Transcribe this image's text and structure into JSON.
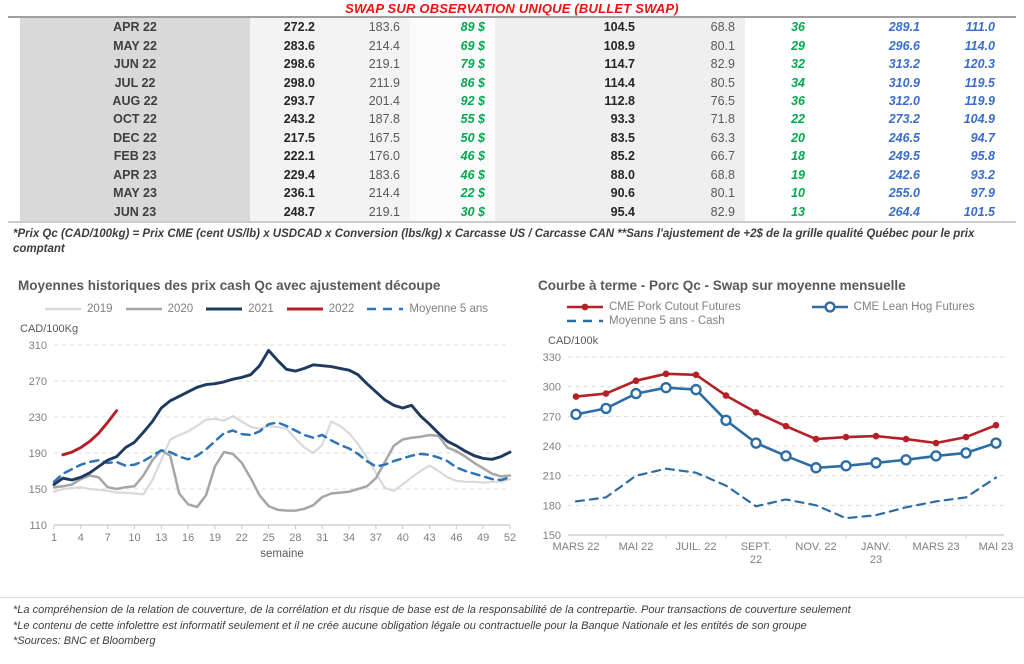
{
  "title": "SWAP SUR OBSERVATION UNIQUE (BULLET SWAP)",
  "colors": {
    "title_red": "#ed1111",
    "green": "#00a94f",
    "blue": "#3a6dcc"
  },
  "table": {
    "rows": [
      [
        "APR 22",
        "272.2",
        "183.6",
        "89 $",
        "104.5",
        "68.8",
        "36",
        "289.1",
        "111.0"
      ],
      [
        "MAY 22",
        "283.6",
        "214.4",
        "69 $",
        "108.9",
        "80.1",
        "29",
        "296.6",
        "114.0"
      ],
      [
        "JUN 22",
        "298.6",
        "219.1",
        "79 $",
        "114.7",
        "82.9",
        "32",
        "313.2",
        "120.3"
      ],
      [
        "JUL 22",
        "298.0",
        "211.9",
        "86 $",
        "114.4",
        "80.5",
        "34",
        "310.9",
        "119.5"
      ],
      [
        "AUG 22",
        "293.7",
        "201.4",
        "92 $",
        "112.8",
        "76.5",
        "36",
        "312.0",
        "119.9"
      ],
      [
        "OCT 22",
        "243.2",
        "187.8",
        "55 $",
        "93.3",
        "71.8",
        "22",
        "273.2",
        "104.9"
      ],
      [
        "DEC 22",
        "217.5",
        "167.5",
        "50 $",
        "83.5",
        "63.3",
        "20",
        "246.5",
        "94.7"
      ],
      [
        "FEB 23",
        "222.1",
        "176.0",
        "46 $",
        "85.2",
        "66.7",
        "18",
        "249.5",
        "95.8"
      ],
      [
        "APR 23",
        "229.4",
        "183.6",
        "46 $",
        "88.0",
        "68.8",
        "19",
        "242.6",
        "93.2"
      ],
      [
        "MAY 23",
        "236.1",
        "214.4",
        "22 $",
        "90.6",
        "80.1",
        "10",
        "255.0",
        "97.9"
      ],
      [
        "JUN 23",
        "248.7",
        "219.1",
        "30 $",
        "95.4",
        "82.9",
        "13",
        "264.4",
        "101.5"
      ]
    ]
  },
  "table_footnote": "*Prix Qc (CAD/100kg) = Prix CME (cent US/lb) x USDCAD x Conversion (lbs/kg) x Carcasse US / Carcasse CAN **Sans l'ajustement de +2$ de la grille qualité Québec pour le prix comptant",
  "chart_data": [
    {
      "type": "line",
      "title": "Moyennes historiques des prix cash Qc avec ajustement découpe",
      "ylabel": "CAD/100Kg",
      "xlabel": "semaine",
      "ylim": [
        110,
        310
      ],
      "yticks": [
        110,
        150,
        190,
        230,
        270,
        310
      ],
      "x_range": [
        1,
        52
      ],
      "xticks": [
        1,
        4,
        7,
        10,
        13,
        16,
        19,
        22,
        25,
        28,
        31,
        34,
        37,
        40,
        43,
        46,
        49,
        52
      ],
      "grid": true,
      "legend_position": "top",
      "series": [
        {
          "name": "2019",
          "color": "#d9d9d9",
          "style": "solid",
          "width": 2.2,
          "values": [
            147,
            150,
            151,
            152,
            150,
            149,
            148,
            146,
            146,
            145,
            144,
            160,
            182,
            205,
            210,
            214,
            220,
            227,
            228,
            226,
            231,
            225,
            219,
            217,
            220,
            219,
            217,
            206,
            196,
            190,
            199,
            225,
            220,
            212,
            200,
            185,
            168,
            151,
            148,
            155,
            163,
            170,
            176,
            170,
            163,
            159,
            158,
            158,
            157,
            158,
            158,
            161
          ]
        },
        {
          "name": "2020",
          "color": "#a6a6a6",
          "style": "solid",
          "width": 2.5,
          "values": [
            152,
            153,
            155,
            161,
            165,
            163,
            152,
            150,
            152,
            153,
            165,
            182,
            193,
            187,
            145,
            133,
            130,
            143,
            175,
            191,
            189,
            179,
            162,
            143,
            131,
            127,
            126,
            126,
            128,
            132,
            141,
            145,
            146,
            147,
            150,
            153,
            162,
            180,
            198,
            205,
            207,
            208,
            210,
            209,
            196,
            192,
            186,
            179,
            173,
            167,
            164,
            165
          ]
        },
        {
          "name": "2021",
          "color": "#1f3a5f",
          "style": "solid",
          "width": 2.9,
          "values": [
            155,
            162,
            160,
            163,
            168,
            175,
            182,
            186,
            196,
            202,
            213,
            225,
            240,
            248,
            253,
            258,
            263,
            266,
            267,
            269,
            272,
            274,
            277,
            287,
            304,
            293,
            283,
            281,
            284,
            288,
            287,
            286,
            284,
            282,
            277,
            267,
            258,
            249,
            243,
            240,
            243,
            231,
            222,
            212,
            203,
            198,
            192,
            187,
            184,
            183,
            186,
            191
          ]
        },
        {
          "name": "2022",
          "color": "#b42025",
          "style": "solid",
          "width": 2.9,
          "x": [
            2,
            3,
            4,
            5,
            6,
            7,
            8
          ],
          "values": [
            188,
            191,
            196,
            203,
            212,
            224,
            237
          ]
        },
        {
          "name": "Moyenne 5 ans",
          "color": "#2e75b6",
          "style": "dashed",
          "width": 2.5,
          "values": [
            158,
            167,
            172,
            177,
            180,
            182,
            179,
            180,
            176,
            177,
            181,
            187,
            193,
            191,
            186,
            183,
            187,
            194,
            203,
            212,
            215,
            211,
            210,
            214,
            222,
            224,
            220,
            215,
            210,
            207,
            210,
            204,
            199,
            195,
            189,
            181,
            175,
            177,
            181,
            184,
            187,
            189,
            188,
            185,
            181,
            174,
            170,
            167,
            164,
            161,
            160,
            163
          ]
        }
      ]
    },
    {
      "type": "line",
      "title": "Courbe à terme - Porc Qc - Swap sur moyenne mensuelle",
      "ylabel": "CAD/100k",
      "xlabel": "",
      "ylim": [
        150,
        330
      ],
      "yticks": [
        150,
        180,
        210,
        240,
        270,
        300,
        330
      ],
      "categories": [
        "MARS 22",
        "AVR 22",
        "MAI 22",
        "JUIN 22",
        "JUIL. 22",
        "AOÛT 22",
        "SEPT. 22",
        "OCT. 22",
        "NOV. 22",
        "DÉC. 22",
        "JANV. 23",
        "FÉVR. 23",
        "MARS 23",
        "AVR. 23",
        "MAI 23"
      ],
      "tick_positions": [
        0,
        2,
        4,
        6,
        8,
        10,
        12,
        14
      ],
      "tick_labels": [
        [
          "MARS 22"
        ],
        [
          "MAI 22"
        ],
        [
          "JUIL. 22"
        ],
        [
          "SEPT.",
          "22"
        ],
        [
          "NOV. 22"
        ],
        [
          "JANV.",
          "23"
        ],
        [
          "MARS 23"
        ],
        [
          "MAI 23"
        ]
      ],
      "grid": true,
      "legend_position": "top",
      "series": [
        {
          "name": "CME Pork Cutout Futures",
          "color": "#b42025",
          "style": "solid",
          "width": 2.6,
          "marker": "filled",
          "values": [
            290,
            293,
            306,
            313,
            312,
            291,
            274,
            260,
            247,
            249,
            250,
            247,
            243,
            249,
            261
          ]
        },
        {
          "name": "CME Lean Hog Futures",
          "color": "#2e6da4",
          "style": "solid",
          "width": 2.6,
          "marker": "open",
          "values": [
            272,
            278,
            293,
            299,
            297,
            266,
            243,
            230,
            218,
            220,
            223,
            226,
            230,
            233,
            243
          ]
        },
        {
          "name": "Moyenne 5 ans - Cash",
          "color": "#2e6da4",
          "style": "dashed",
          "width": 2.2,
          "values": [
            184,
            188,
            210,
            217,
            213,
            200,
            179,
            186,
            180,
            167,
            170,
            178,
            184,
            188,
            208
          ]
        }
      ]
    }
  ],
  "footnotes": [
    "*La compréhension de la relation de couverture, de la corrélation et du risque de base est de la responsabilité de la contrepartie. Pour transactions de couverture seulement",
    "*Le contenu de cette infolettre est informatif seulement et il ne crée aucune obligation légale ou contractuelle pour la Banque Nationale et les entités de son groupe",
    "*Sources: BNC et Bloomberg"
  ]
}
